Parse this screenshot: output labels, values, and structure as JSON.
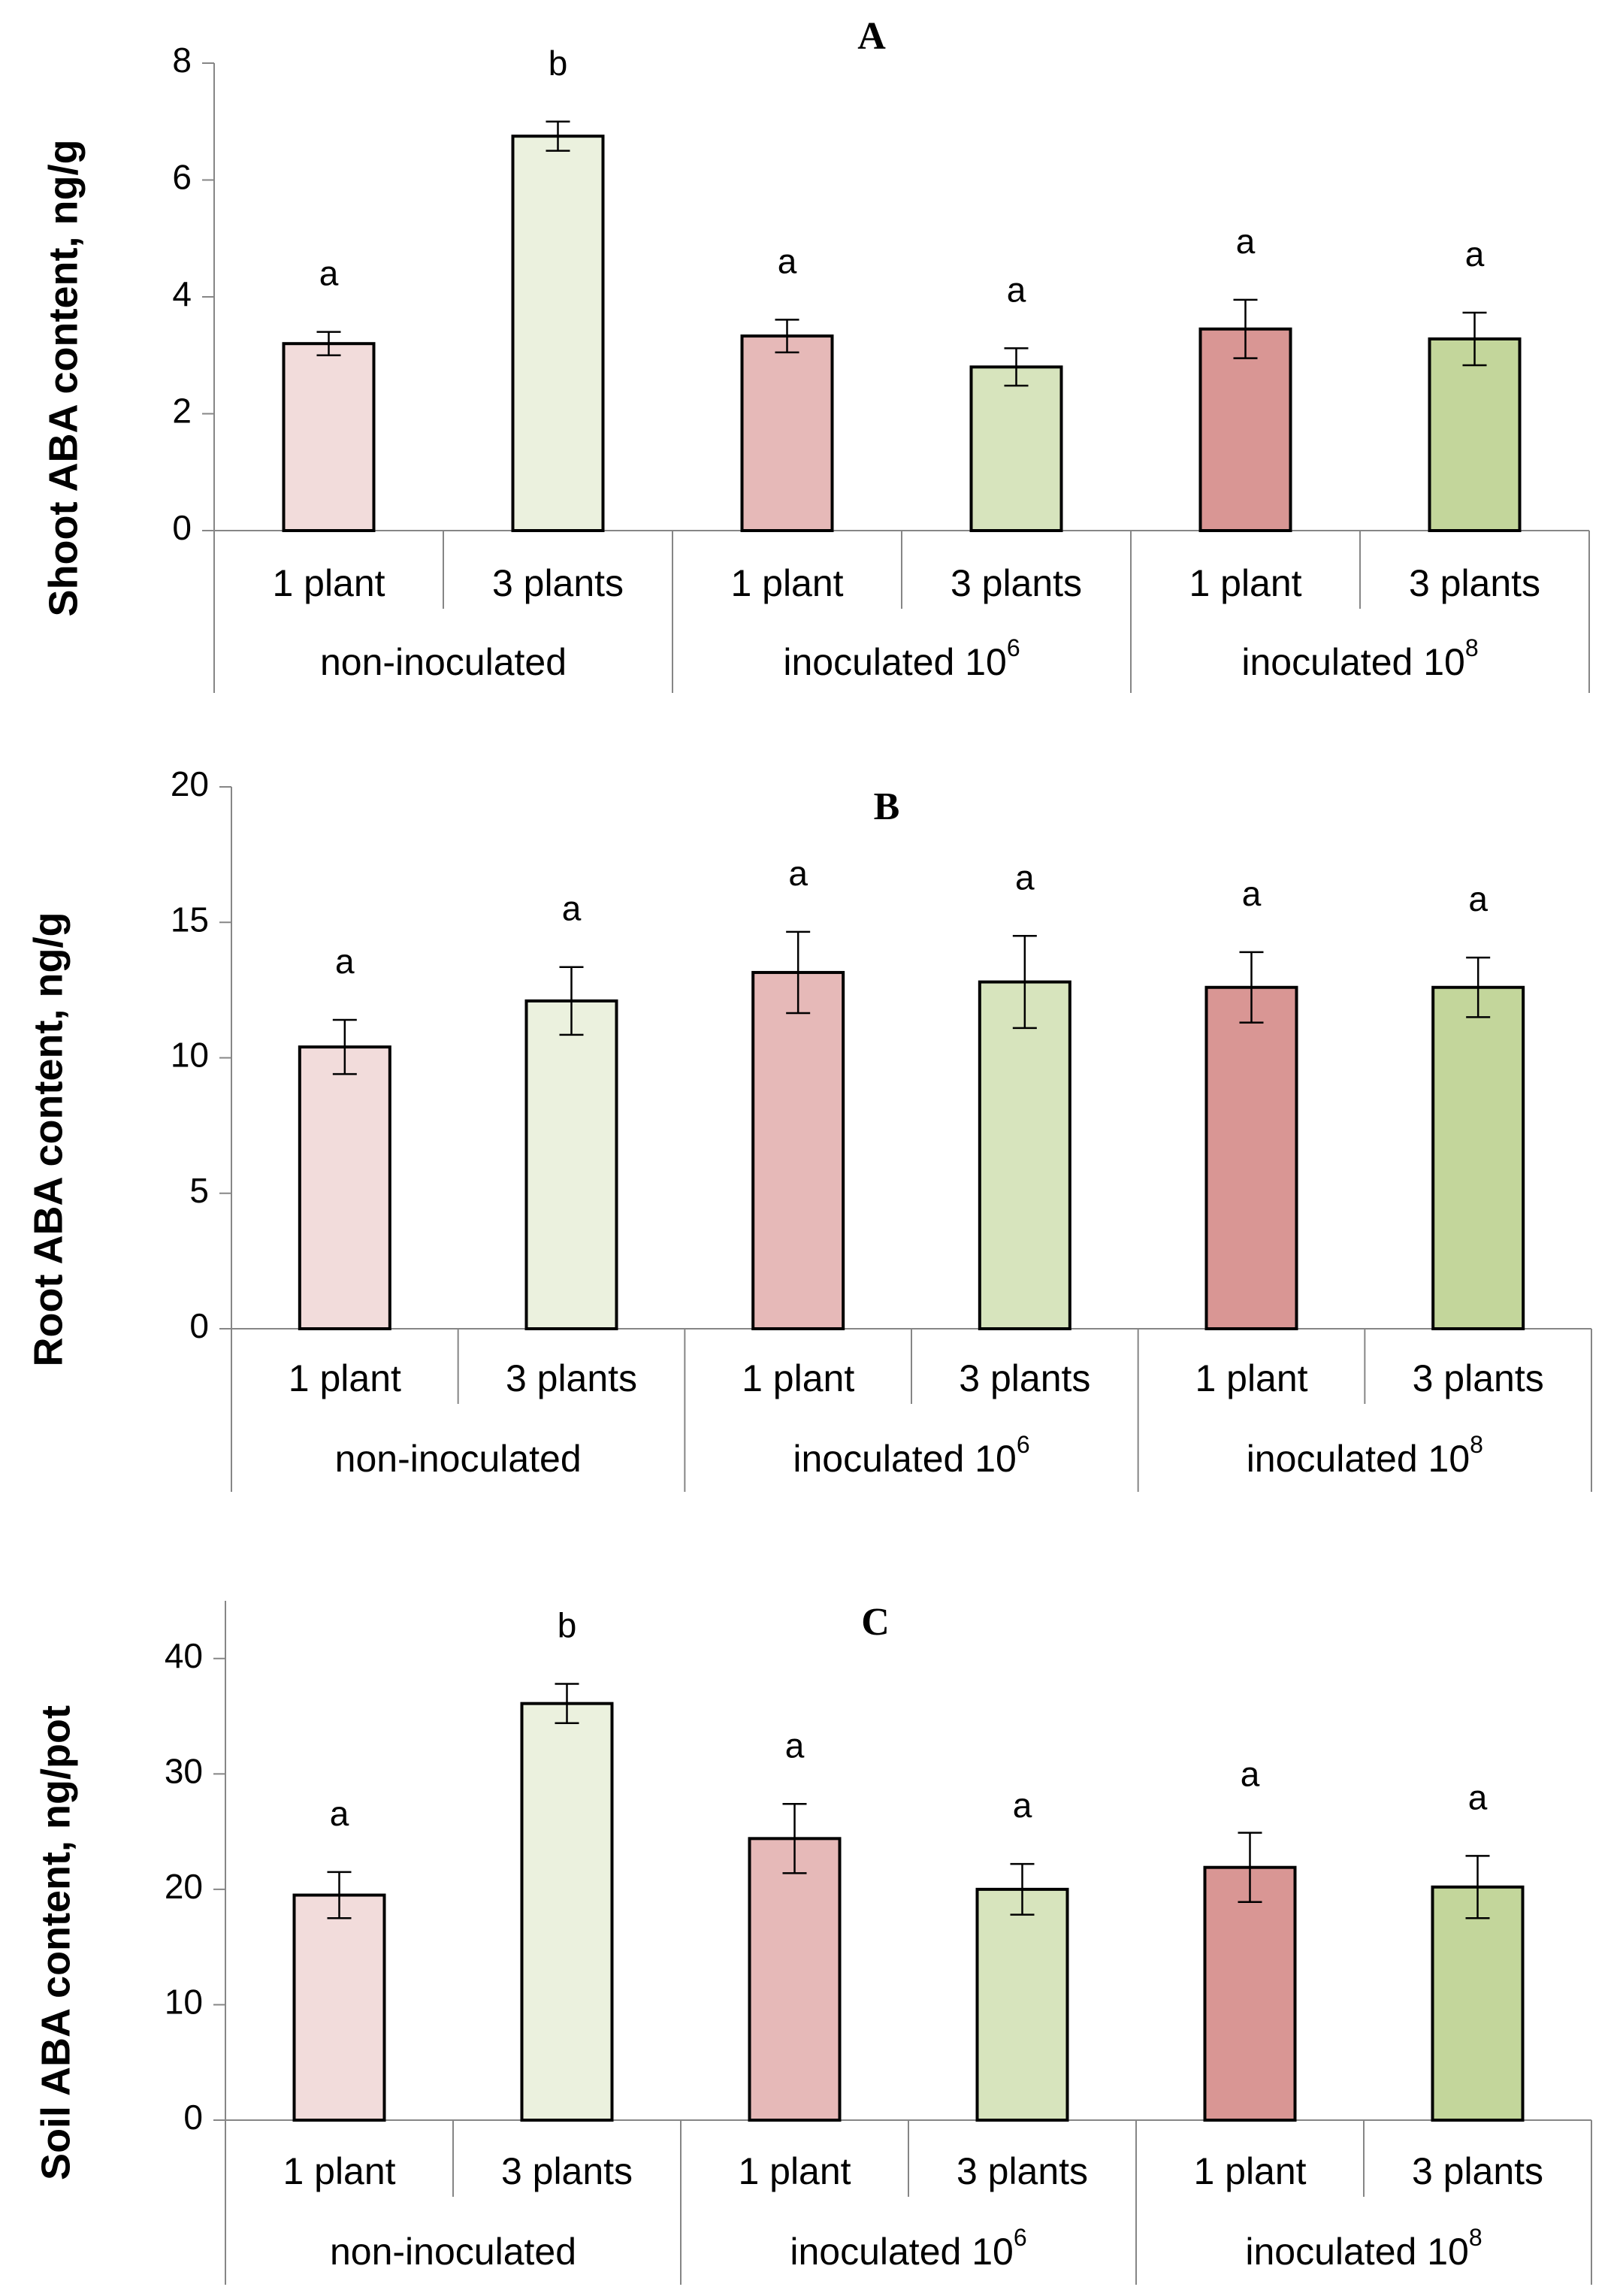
{
  "chart_data": [
    {
      "type": "bar",
      "title": "A",
      "ylabel": "Shoot ABA content, ng/g",
      "ylim": [
        0,
        8
      ],
      "yticks": [
        0,
        2,
        4,
        6,
        8
      ],
      "categories": [
        "1 plant",
        "3 plants",
        "1 plant",
        "3 plants",
        "1 plant",
        "3 plants"
      ],
      "groups": [
        {
          "label": "non-inoculated",
          "sup": ""
        },
        {
          "label": "inoculated 10",
          "sup": "6"
        },
        {
          "label": "inoculated 10",
          "sup": "8"
        }
      ],
      "values": [
        3.2,
        6.75,
        3.33,
        2.8,
        3.45,
        3.28
      ],
      "errors": [
        0.2,
        0.25,
        0.28,
        0.32,
        0.5,
        0.45
      ],
      "significance": [
        "a",
        "b",
        "a",
        "a",
        "a",
        "a"
      ],
      "colors": [
        "#f2dcdb",
        "#ebf1de",
        "#e6b9b8",
        "#d7e4bd",
        "#d99694",
        "#c3d69b"
      ]
    },
    {
      "type": "bar",
      "title": "B",
      "ylabel": "Root ABA content, ng/g",
      "ylim": [
        0,
        20
      ],
      "yticks": [
        0,
        5,
        10,
        15,
        20
      ],
      "categories": [
        "1 plant",
        "3 plants",
        "1 plant",
        "3 plants",
        "1 plant",
        "3 plants"
      ],
      "groups": [
        {
          "label": "non-inoculated",
          "sup": ""
        },
        {
          "label": "inoculated 10",
          "sup": "6"
        },
        {
          "label": "inoculated 10",
          "sup": "8"
        }
      ],
      "values": [
        10.4,
        12.1,
        13.15,
        12.8,
        12.6,
        12.6
      ],
      "errors": [
        1.0,
        1.25,
        1.5,
        1.7,
        1.3,
        1.1
      ],
      "significance": [
        "a",
        "a",
        "a",
        "a",
        "a",
        "a"
      ],
      "colors": [
        "#f2dcdb",
        "#ebf1de",
        "#e6b9b8",
        "#d7e4bd",
        "#d99694",
        "#c3d69b"
      ]
    },
    {
      "type": "bar",
      "title": "C",
      "ylabel": "Soil ABA content, ng/pot",
      "ylim": [
        0,
        45
      ],
      "yticks": [
        0,
        10,
        20,
        30,
        40
      ],
      "categories": [
        "1 plant",
        "3 plants",
        "1 plant",
        "3 plants",
        "1 plant",
        "3 plants"
      ],
      "groups": [
        {
          "label": "non-inoculated",
          "sup": ""
        },
        {
          "label": "inoculated 10",
          "sup": "6"
        },
        {
          "label": "inoculated 10",
          "sup": "8"
        }
      ],
      "values": [
        19.5,
        36.1,
        24.4,
        20.0,
        21.9,
        20.2
      ],
      "errors": [
        2.0,
        1.7,
        3.0,
        2.2,
        3.0,
        2.7
      ],
      "significance": [
        "a",
        "b",
        "a",
        "a",
        "a",
        "a"
      ],
      "colors": [
        "#f2dcdb",
        "#ebf1de",
        "#e6b9b8",
        "#d7e4bd",
        "#d99694",
        "#c3d69b"
      ]
    }
  ]
}
